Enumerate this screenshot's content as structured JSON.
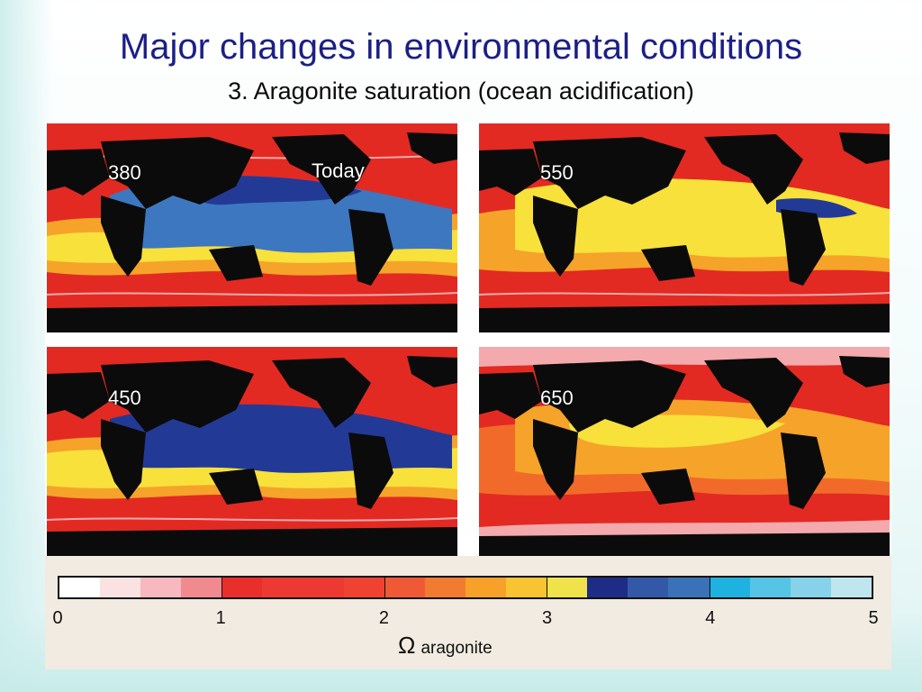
{
  "title": "Major changes in environmental conditions",
  "subtitle": "3. Aragonite saturation (ocean acidification)",
  "maps": [
    {
      "label": "380",
      "label2": "Today"
    },
    {
      "label": "550",
      "label2": ""
    },
    {
      "label": "450",
      "label2": ""
    },
    {
      "label": "650",
      "label2": ""
    }
  ],
  "colorbar": {
    "colors": [
      "#ffffff",
      "#fbe2e2",
      "#f7b8bf",
      "#f08a8e",
      "#e92f2b",
      "#ec3a32",
      "#ec3a32",
      "#ef4232",
      "#f05936",
      "#f37b31",
      "#f7a12b",
      "#f8c431",
      "#f0e24a",
      "#1e2c86",
      "#3458a8",
      "#3a72b8",
      "#1fb2e0",
      "#56c4e4",
      "#86d2ea",
      "#bfe6ee"
    ],
    "ticks": [
      "0",
      "1",
      "2",
      "3",
      "4",
      "5"
    ],
    "axis_symbol": "Ω",
    "axis_name": "aragonite"
  },
  "colors": {
    "title": "#1b1f86",
    "land": "#0b0b0b",
    "deep_red": "#e22a22",
    "orange_red": "#f26a2a",
    "orange": "#f6a32a",
    "yellow": "#f8e13a",
    "light_blue": "#3d77c0",
    "dark_blue": "#223a96",
    "pink": "#f4a9ad"
  }
}
